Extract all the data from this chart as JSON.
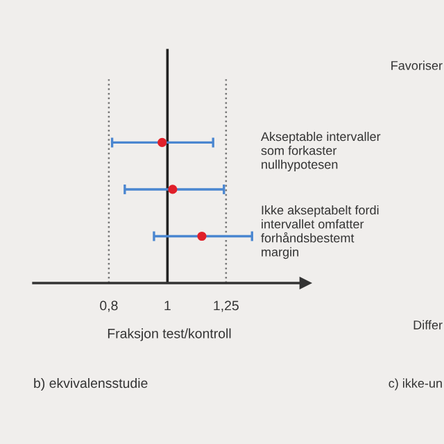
{
  "chart_data": {
    "type": "scatter",
    "orientation": "horizontal",
    "title": "b) ekvivalensstudie",
    "xlabel": "Fraksjon test/kontroll",
    "categories": [
      null,
      null,
      null
    ],
    "series": [
      {
        "color": "#e0202a",
        "values": [
          0.98,
          1.02,
          1.14
        ],
        "errors": [
          [
            0.81,
            1.19
          ],
          [
            0.85,
            1.24
          ],
          [
            0.95,
            1.38
          ]
        ]
      }
    ],
    "log": "x",
    "xlim": [
      0.6,
      1.69
    ],
    "xticks": [
      {
        "value": 0.8,
        "label": "0,8"
      },
      1,
      {
        "value": 1.25,
        "label": "1,25"
      }
    ],
    "ref_lines": [
      {
        "axis": "x",
        "value": 0.8,
        "line_style": "dotted",
        "color": "#777777"
      },
      {
        "axis": "x",
        "value": 1,
        "line_style": "solid",
        "color": "#222222"
      },
      {
        "axis": "x",
        "value": 1.25,
        "line_style": "dotted",
        "color": "#777777"
      }
    ],
    "annotations": [
      "Akseptable intervaller\nsom forkaster\nnullhypotesen",
      "Ikke akseptabelt fordi\nintervallet omfatter\nforhåndsbestemt\nmargin",
      "Favoriser",
      "Differ",
      "c) ikke-un"
    ],
    "grid": false,
    "legend": false,
    "marker": "circle"
  }
}
